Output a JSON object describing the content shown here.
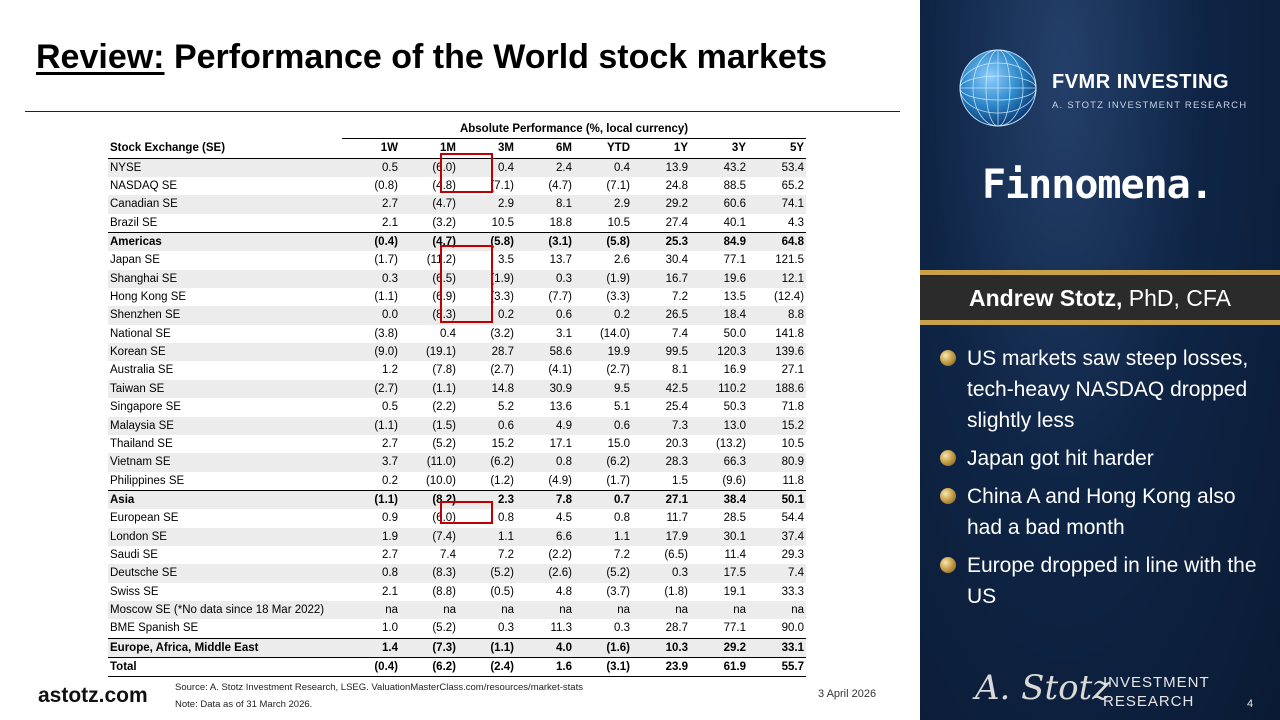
{
  "title": {
    "underlined": "Review:",
    "rest": " Performance of the World stock markets"
  },
  "table": {
    "group_header": "Absolute Performance (%, local currency)",
    "name_header": "Stock Exchange (SE)",
    "columns": [
      "1W",
      "1M",
      "3M",
      "6M",
      "YTD",
      "1Y",
      "3Y",
      "5Y"
    ],
    "rows": [
      {
        "name": "NYSE",
        "values": [
          "0.5",
          "(6.0)",
          "0.4",
          "2.4",
          "0.4",
          "13.9",
          "43.2",
          "53.4"
        ]
      },
      {
        "name": "NASDAQ SE",
        "values": [
          "(0.8)",
          "(4.8)",
          "(7.1)",
          "(4.7)",
          "(7.1)",
          "24.8",
          "88.5",
          "65.2"
        ]
      },
      {
        "name": "Canadian SE",
        "values": [
          "2.7",
          "(4.7)",
          "2.9",
          "8.1",
          "2.9",
          "29.2",
          "60.6",
          "74.1"
        ]
      },
      {
        "name": "Brazil SE",
        "values": [
          "2.1",
          "(3.2)",
          "10.5",
          "18.8",
          "10.5",
          "27.4",
          "40.1",
          "4.3"
        ]
      },
      {
        "name": "Americas",
        "values": [
          "(0.4)",
          "(4.7)",
          "(5.8)",
          "(3.1)",
          "(5.8)",
          "25.3",
          "84.9",
          "64.8"
        ],
        "aggregate": true
      },
      {
        "name": "Japan SE",
        "values": [
          "(1.7)",
          "(11.2)",
          "3.5",
          "13.7",
          "2.6",
          "30.4",
          "77.1",
          "121.5"
        ]
      },
      {
        "name": "Shanghai SE",
        "values": [
          "0.3",
          "(6.5)",
          "(1.9)",
          "0.3",
          "(1.9)",
          "16.7",
          "19.6",
          "12.1"
        ]
      },
      {
        "name": "Hong Kong SE",
        "values": [
          "(1.1)",
          "(6.9)",
          "(3.3)",
          "(7.7)",
          "(3.3)",
          "7.2",
          "13.5",
          "(12.4)"
        ]
      },
      {
        "name": "Shenzhen SE",
        "values": [
          "0.0",
          "(8.3)",
          "0.2",
          "0.6",
          "0.2",
          "26.5",
          "18.4",
          "8.8"
        ]
      },
      {
        "name": "National SE",
        "values": [
          "(3.8)",
          "0.4",
          "(3.2)",
          "3.1",
          "(14.0)",
          "7.4",
          "50.0",
          "141.8"
        ]
      },
      {
        "name": "Korean SE",
        "values": [
          "(9.0)",
          "(19.1)",
          "28.7",
          "58.6",
          "19.9",
          "99.5",
          "120.3",
          "139.6"
        ]
      },
      {
        "name": "Australia SE",
        "values": [
          "1.2",
          "(7.8)",
          "(2.7)",
          "(4.1)",
          "(2.7)",
          "8.1",
          "16.9",
          "27.1"
        ]
      },
      {
        "name": "Taiwan SE",
        "values": [
          "(2.7)",
          "(1.1)",
          "14.8",
          "30.9",
          "9.5",
          "42.5",
          "110.2",
          "188.6"
        ]
      },
      {
        "name": "Singapore SE",
        "values": [
          "0.5",
          "(2.2)",
          "5.2",
          "13.6",
          "5.1",
          "25.4",
          "50.3",
          "71.8"
        ]
      },
      {
        "name": "Malaysia SE",
        "values": [
          "(1.1)",
          "(1.5)",
          "0.6",
          "4.9",
          "0.6",
          "7.3",
          "13.0",
          "15.2"
        ]
      },
      {
        "name": "Thailand SE",
        "values": [
          "2.7",
          "(5.2)",
          "15.2",
          "17.1",
          "15.0",
          "20.3",
          "(13.2)",
          "10.5"
        ]
      },
      {
        "name": "Vietnam SE",
        "values": [
          "3.7",
          "(11.0)",
          "(6.2)",
          "0.8",
          "(6.2)",
          "28.3",
          "66.3",
          "80.9"
        ]
      },
      {
        "name": "Philippines SE",
        "values": [
          "0.2",
          "(10.0)",
          "(1.2)",
          "(4.9)",
          "(1.7)",
          "1.5",
          "(9.6)",
          "11.8"
        ]
      },
      {
        "name": "Asia",
        "values": [
          "(1.1)",
          "(8.2)",
          "2.3",
          "7.8",
          "0.7",
          "27.1",
          "38.4",
          "50.1"
        ],
        "aggregate": true
      },
      {
        "name": "European SE",
        "values": [
          "0.9",
          "(6.0)",
          "0.8",
          "4.5",
          "0.8",
          "11.7",
          "28.5",
          "54.4"
        ]
      },
      {
        "name": "London SE",
        "values": [
          "1.9",
          "(7.4)",
          "1.1",
          "6.6",
          "1.1",
          "17.9",
          "30.1",
          "37.4"
        ]
      },
      {
        "name": "Saudi SE",
        "values": [
          "2.7",
          "7.4",
          "7.2",
          "(2.2)",
          "7.2",
          "(6.5)",
          "11.4",
          "29.3"
        ]
      },
      {
        "name": "Deutsche SE",
        "values": [
          "0.8",
          "(8.3)",
          "(5.2)",
          "(2.6)",
          "(5.2)",
          "0.3",
          "17.5",
          "7.4"
        ]
      },
      {
        "name": "Swiss SE",
        "values": [
          "2.1",
          "(8.8)",
          "(0.5)",
          "4.8",
          "(3.7)",
          "(1.8)",
          "19.1",
          "33.3"
        ]
      },
      {
        "name": "Moscow SE (*No data since 18 Mar 2022)",
        "values": [
          "na",
          "na",
          "na",
          "na",
          "na",
          "na",
          "na",
          "na"
        ]
      },
      {
        "name": "BME Spanish SE",
        "values": [
          "1.0",
          "(5.2)",
          "0.3",
          "11.3",
          "0.3",
          "28.7",
          "77.1",
          "90.0"
        ]
      },
      {
        "name": "Europe, Africa, Middle East",
        "values": [
          "1.4",
          "(7.3)",
          "(1.1)",
          "4.0",
          "(1.6)",
          "10.3",
          "29.2",
          "33.1"
        ],
        "aggregate": true
      },
      {
        "name": "Total",
        "values": [
          "(0.4)",
          "(6.2)",
          "(2.4)",
          "1.6",
          "(3.1)",
          "23.9",
          "61.9",
          "55.7"
        ],
        "aggregate": true,
        "total": true
      }
    ]
  },
  "footer": {
    "site": "astotz.com",
    "source": "Source: A. Stotz Investment Research, LSEG. ValuationMasterClass.com/resources/market-stats",
    "note": "Note: Data as of 31 March 2026.",
    "date": "3 April 2026"
  },
  "panel": {
    "brand_name": "FVMR INVESTING",
    "brand_sub": "A. STOTZ INVESTMENT RESEARCH",
    "partner": "Finnomena.",
    "presenter_name": "Andrew Stotz,",
    "presenter_credentials": " PhD, CFA",
    "bullets": [
      "US markets saw steep losses, tech-heavy NASDAQ dropped slightly less",
      "Japan got hit harder",
      "China A and Hong Kong also had a bad month",
      "Europe dropped in line with the US"
    ],
    "logo_signature": "A. Stotz",
    "logo_line1": "INVESTMENT",
    "logo_line2": "RESEARCH",
    "page_number": "4"
  },
  "colors": {
    "panel_bg": "#0f2546",
    "gold": "#c9a14a",
    "highlight": "#c00000",
    "name_bar": "#2b2b2b"
  }
}
